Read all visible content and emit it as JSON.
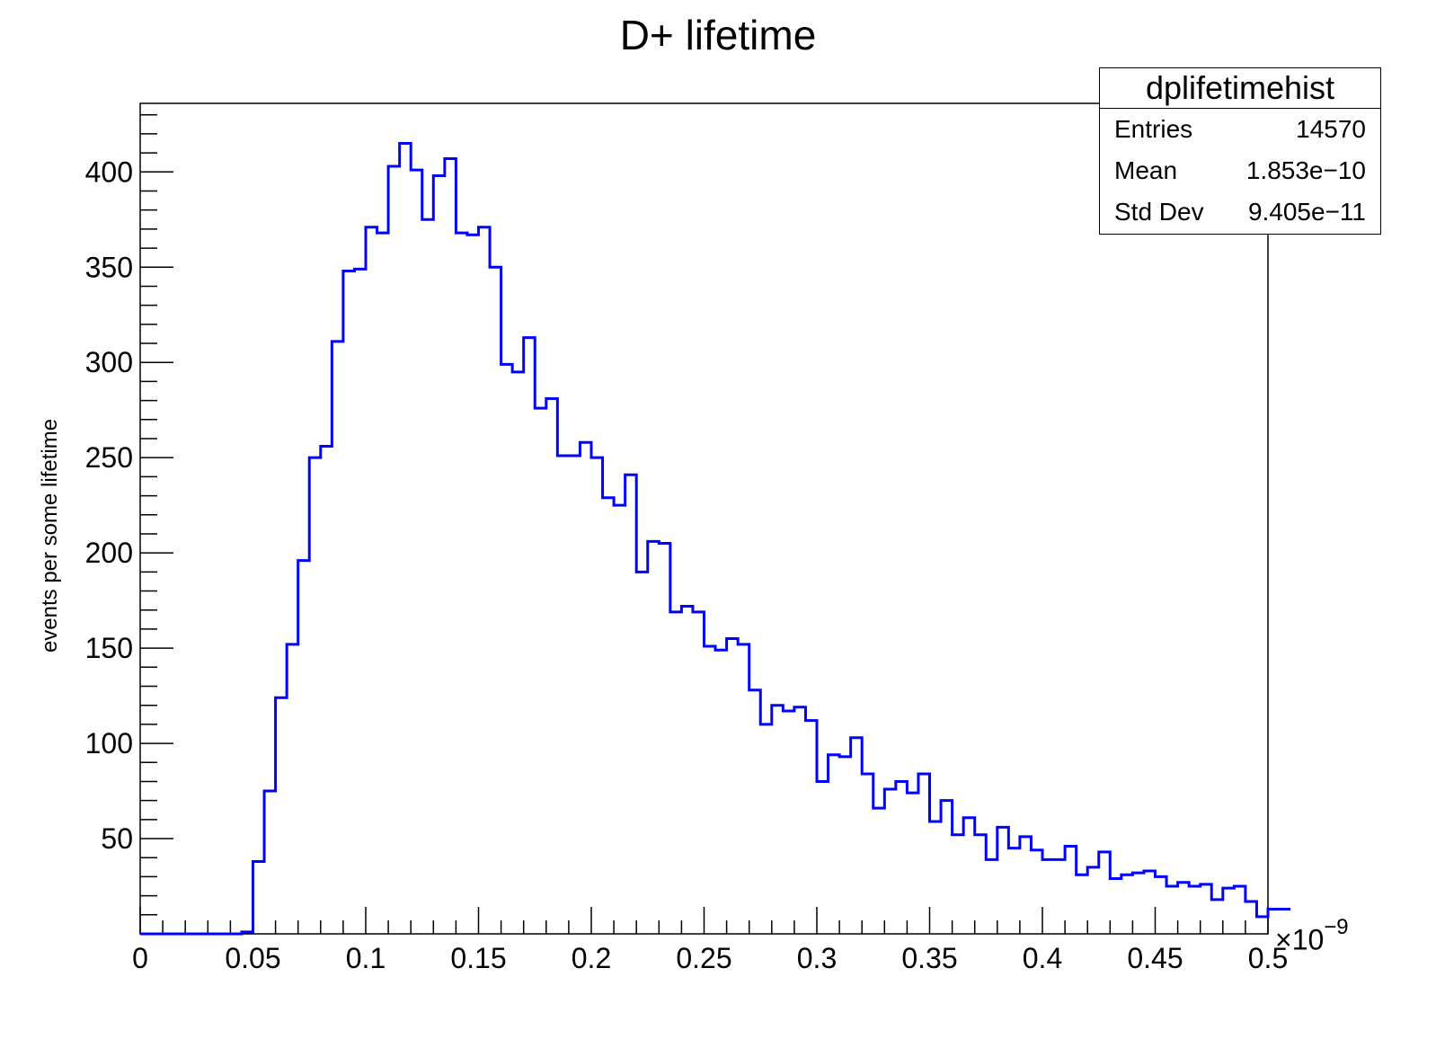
{
  "chart_data": {
    "type": "histogram",
    "title": "D+ lifetime",
    "xlabel": "",
    "ylabel": "events per some lifetime",
    "x_exponent_base": "×10",
    "x_exponent_power": "−9",
    "xlim": [
      0,
      0.5
    ],
    "ylim": [
      0,
      436
    ],
    "x_ticks": [
      "0",
      "0.05",
      "0.1",
      "0.15",
      "0.2",
      "0.25",
      "0.3",
      "0.35",
      "0.4",
      "0.45",
      "0.5"
    ],
    "y_ticks": [
      "50",
      "100",
      "150",
      "200",
      "250",
      "300",
      "350",
      "400"
    ],
    "bin_width": 0.005,
    "series": [
      {
        "color": "#0000ff",
        "bin_edges_start": 0,
        "counts": [
          0,
          0,
          0,
          0,
          0,
          0,
          0,
          0,
          0,
          1,
          38,
          75,
          124,
          152,
          196,
          250,
          256,
          311,
          348,
          349,
          371,
          368,
          403,
          415,
          401,
          375,
          398,
          407,
          368,
          367,
          371,
          350,
          299,
          295,
          313,
          276,
          281,
          251,
          251,
          258,
          250,
          229,
          225,
          241,
          190,
          206,
          205,
          169,
          172,
          169,
          151,
          149,
          155,
          152,
          128,
          110,
          120,
          117,
          119,
          112,
          80,
          94,
          93,
          103,
          84,
          66,
          76,
          80,
          74,
          84,
          59,
          70,
          52,
          61,
          52,
          39,
          56,
          45,
          51,
          44,
          39,
          39,
          46,
          31,
          35,
          43,
          29,
          31,
          32,
          33,
          30,
          25,
          27,
          25,
          26,
          18,
          24,
          25,
          17,
          9,
          13,
          13
        ]
      }
    ]
  },
  "stats_box": {
    "title": "dplifetimehist",
    "rows": [
      {
        "label": "Entries",
        "value": "14570"
      },
      {
        "label": "Mean",
        "value": "1.853e−10"
      },
      {
        "label": "Std Dev",
        "value": "9.405e−11"
      }
    ]
  }
}
